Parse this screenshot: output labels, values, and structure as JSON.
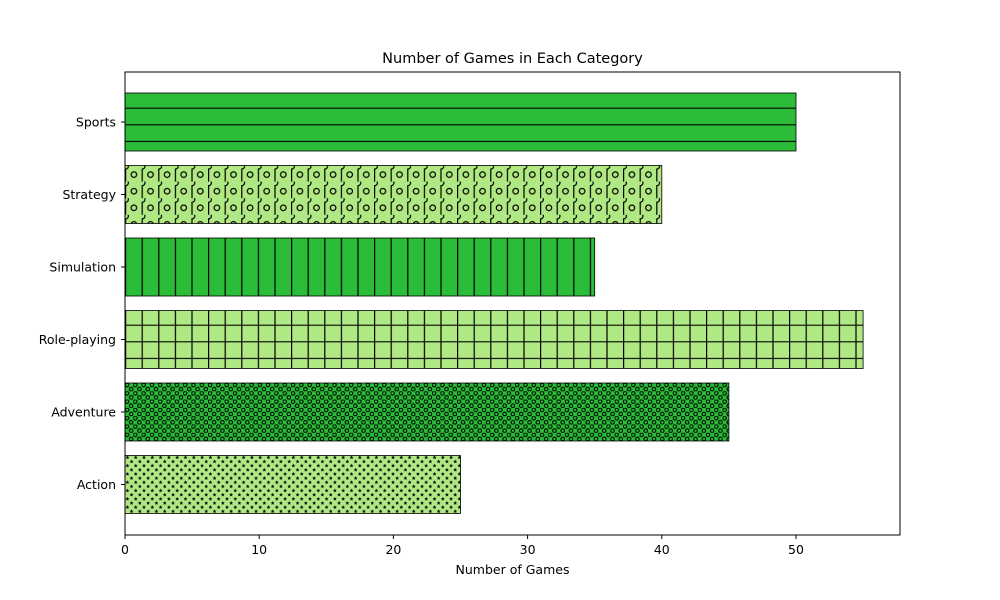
{
  "chart_data": {
    "type": "bar",
    "orientation": "horizontal",
    "title": "Number of Games in Each Category",
    "xlabel": "Number of Games",
    "ylabel": "",
    "categories": [
      "Sports",
      "Strategy",
      "Simulation",
      "Role-playing",
      "Adventure",
      "Action"
    ],
    "values": [
      50,
      40,
      35,
      55,
      45,
      25
    ],
    "xlim": [
      0,
      57.75
    ],
    "xticks": [
      0,
      10,
      20,
      30,
      40,
      50
    ],
    "grid": false,
    "legend": "none",
    "bars": [
      {
        "category": "Sports",
        "value": 50,
        "color": "#2bbd37",
        "hatch": "horizontal-lines"
      },
      {
        "category": "Strategy",
        "value": 40,
        "color": "#b0e883",
        "hatch": "circles-grid"
      },
      {
        "category": "Simulation",
        "value": 35,
        "color": "#2bbd37",
        "hatch": "vertical-lines"
      },
      {
        "category": "Role-playing",
        "value": 55,
        "color": "#b0e883",
        "hatch": "crosshatch"
      },
      {
        "category": "Adventure",
        "value": 45,
        "color": "#2bbd37",
        "hatch": "dots"
      },
      {
        "category": "Action",
        "value": 25,
        "color": "#b0e883",
        "hatch": "stars"
      }
    ]
  }
}
